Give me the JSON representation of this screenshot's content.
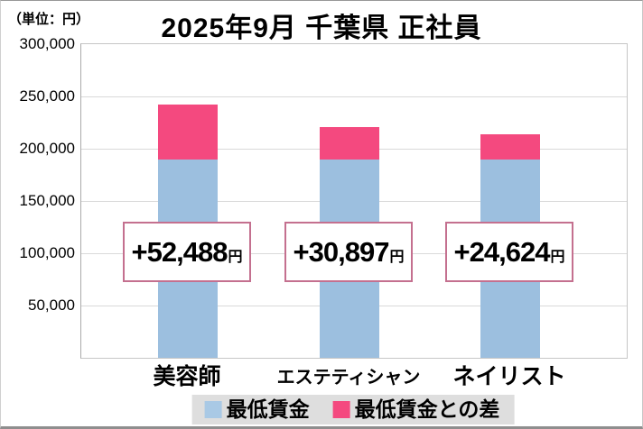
{
  "header": {
    "title": "2025年9月 千葉県 正社員",
    "unit_label": "（単位：円）"
  },
  "chart_data": {
    "type": "bar",
    "stacked": true,
    "title": "2025年9月 千葉県 正社員",
    "unit_label": "（単位：円）",
    "categories": [
      "美容師",
      "エステティシャン",
      "ネイリスト"
    ],
    "series": [
      {
        "name": "最低賃金",
        "color": "#9cbfdf",
        "values": [
          189376,
          189376,
          189376
        ]
      },
      {
        "name": "最低賃金との差",
        "color": "#f4497f",
        "values": [
          52488,
          30897,
          24624
        ]
      }
    ],
    "bar_totals": [
      241864,
      220273,
      214000
    ],
    "diff_labels": [
      "+52,488",
      "+30,897",
      "+24,624"
    ],
    "diff_suffix": "円",
    "ylim": [
      0,
      300000
    ],
    "ytick_step": 50000,
    "ytick_labels": [
      "300,000",
      "250,000",
      "200,000",
      "150,000",
      "100,000",
      "50,000"
    ],
    "grid": true,
    "legend": {
      "position": "bottom",
      "items": [
        {
          "label": "最低賃金",
          "color": "#a9c9e5"
        },
        {
          "label": "最低賃金との差",
          "color": "#f4497f"
        }
      ]
    }
  }
}
